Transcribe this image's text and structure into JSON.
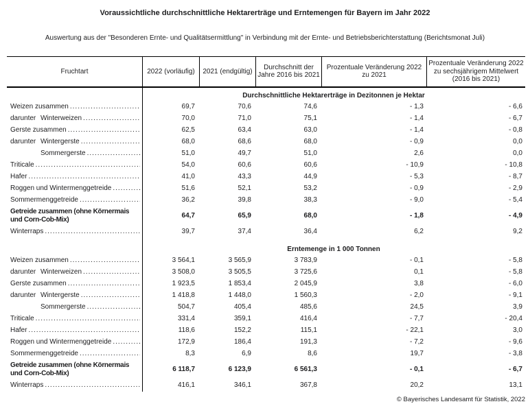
{
  "title": "Voraussichtliche durchschnittliche Hektarerträge und Erntemengen für Bayern im Jahr 2022",
  "subtitle": "Auswertung aus der \"Besonderen Ernte- und Qualitätsermittlung\" in Verbindung mit der Ernte- und Betriebsberichterstattung (Berichtsmonat Juli)",
  "footer": "© Bayerisches Landesamt für Statistik, 2022",
  "table": {
    "columns": [
      "Fruchtart",
      "2022 (vorläufig)",
      "2021 (endgültig)",
      "Durchschnitt der Jahre 2016 bis 2021",
      "Prozentuale Veränderung 2022 zu 2021",
      "Prozentuale Veränderung 2022 zu sechsjährigem Mittelwert (2016 bis 2021)"
    ],
    "sections": [
      {
        "heading": "Durchschnittliche Hektarerträge in Dezitonnen je Hektar",
        "rows": [
          {
            "prefix": "",
            "indent": false,
            "bold": false,
            "label": "Weizen zusammen",
            "values": [
              "69,7",
              "70,6",
              "74,6",
              "- 1,3",
              "- 6,6"
            ]
          },
          {
            "prefix": "darunter",
            "indent": true,
            "bold": false,
            "label": "Winterweizen",
            "values": [
              "70,0",
              "71,0",
              "75,1",
              "- 1,4",
              "- 6,7"
            ]
          },
          {
            "prefix": "",
            "indent": false,
            "bold": false,
            "label": "Gerste zusammen",
            "values": [
              "62,5",
              "63,4",
              "63,0",
              "- 1,4",
              "- 0,8"
            ]
          },
          {
            "prefix": "darunter",
            "indent": true,
            "bold": false,
            "label": "Wintergerste",
            "values": [
              "68,0",
              "68,6",
              "68,0",
              "- 0,9",
              "0,0"
            ]
          },
          {
            "prefix": "",
            "indent": true,
            "bold": false,
            "label": "Sommergerste",
            "values": [
              "51,0",
              "49,7",
              "51,0",
              "2,6",
              "0,0"
            ]
          },
          {
            "prefix": "",
            "indent": false,
            "bold": false,
            "label": "Triticale",
            "values": [
              "54,0",
              "60,6",
              "60,6",
              "- 10,9",
              "- 10,8"
            ]
          },
          {
            "prefix": "",
            "indent": false,
            "bold": false,
            "label": "Hafer",
            "values": [
              "41,0",
              "43,3",
              "44,9",
              "- 5,3",
              "- 8,7"
            ]
          },
          {
            "prefix": "",
            "indent": false,
            "bold": false,
            "label": "Roggen und Wintermenggetreide",
            "values": [
              "51,6",
              "52,1",
              "53,2",
              "- 0,9",
              "- 2,9"
            ]
          },
          {
            "prefix": "",
            "indent": false,
            "bold": false,
            "label": "Sommermenggetreide",
            "values": [
              "36,2",
              "39,8",
              "38,3",
              "- 9,0",
              "- 5,4"
            ]
          },
          {
            "prefix": "",
            "indent": false,
            "bold": true,
            "label": "Getreide zusammen (ohne Körnermais und Corn-Cob-Mix)",
            "values": [
              "64,7",
              "65,9",
              "68,0",
              "- 1,8",
              "- 4,9"
            ]
          },
          {
            "prefix": "",
            "indent": false,
            "bold": false,
            "label": "Winterraps",
            "values": [
              "39,7",
              "37,4",
              "36,4",
              "6,2",
              "9,2"
            ]
          }
        ]
      },
      {
        "heading": "Erntemenge in 1 000 Tonnen",
        "rows": [
          {
            "prefix": "",
            "indent": false,
            "bold": false,
            "label": "Weizen zusammen",
            "values": [
              "3 564,1",
              "3 565,9",
              "3 783,9",
              "- 0,1",
              "- 5,8"
            ]
          },
          {
            "prefix": "darunter",
            "indent": true,
            "bold": false,
            "label": "Winterweizen",
            "values": [
              "3 508,0",
              "3 505,5",
              "3 725,6",
              "0,1",
              "- 5,8"
            ]
          },
          {
            "prefix": "",
            "indent": false,
            "bold": false,
            "label": "Gerste zusammen",
            "values": [
              "1 923,5",
              "1 853,4",
              "2 045,9",
              "3,8",
              "- 6,0"
            ]
          },
          {
            "prefix": "darunter",
            "indent": true,
            "bold": false,
            "label": "Wintergerste",
            "values": [
              "1 418,8",
              "1 448,0",
              "1 560,3",
              "- 2,0",
              "- 9,1"
            ]
          },
          {
            "prefix": "",
            "indent": true,
            "bold": false,
            "label": "Sommergerste",
            "values": [
              "504,7",
              "405,4",
              "485,6",
              "24,5",
              "3,9"
            ]
          },
          {
            "prefix": "",
            "indent": false,
            "bold": false,
            "label": "Triticale",
            "values": [
              "331,4",
              "359,1",
              "416,4",
              "- 7,7",
              "- 20,4"
            ]
          },
          {
            "prefix": "",
            "indent": false,
            "bold": false,
            "label": "Hafer",
            "values": [
              "118,6",
              "152,2",
              "115,1",
              "- 22,1",
              "3,0"
            ]
          },
          {
            "prefix": "",
            "indent": false,
            "bold": false,
            "label": "Roggen und Wintermenggetreide",
            "values": [
              "172,9",
              "186,4",
              "191,3",
              "- 7,2",
              "- 9,6"
            ]
          },
          {
            "prefix": "",
            "indent": false,
            "bold": false,
            "label": "Sommermenggetreide",
            "values": [
              "8,3",
              "6,9",
              "8,6",
              "19,7",
              "- 3,8"
            ]
          },
          {
            "prefix": "",
            "indent": false,
            "bold": true,
            "label": "Getreide zusammen (ohne Körnermais und Corn-Cob-Mix)",
            "values": [
              "6 118,7",
              "6 123,9",
              "6 561,3",
              "- 0,1",
              "- 6,7"
            ]
          },
          {
            "prefix": "",
            "indent": false,
            "bold": false,
            "label": "Winterraps",
            "values": [
              "416,1",
              "346,1",
              "367,8",
              "20,2",
              "13,1"
            ]
          }
        ]
      }
    ]
  }
}
